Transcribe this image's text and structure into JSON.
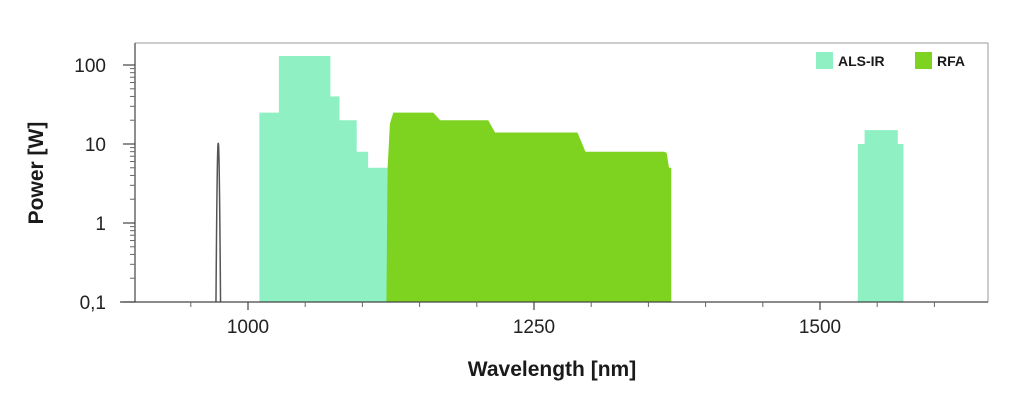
{
  "chart_data": {
    "type": "area",
    "xlabel": "Wavelength [nm]",
    "ylabel": "Power [W]",
    "xlim": [
      880,
      1650
    ],
    "ylim": [
      0.1,
      200
    ],
    "y_scale": "log",
    "x_ticks": [
      {
        "value": 1000,
        "label": "1000"
      },
      {
        "value": 1250,
        "label": "1250"
      },
      {
        "value": 1500,
        "label": "1500"
      }
    ],
    "x_minor_ticks": [
      950,
      1050,
      1100,
      1150,
      1200,
      1300,
      1350,
      1400,
      1450,
      1550,
      1600
    ],
    "y_ticks": [
      {
        "value": 0.1,
        "label": "0,1"
      },
      {
        "value": 1,
        "label": "1"
      },
      {
        "value": 10,
        "label": "10"
      },
      {
        "value": 100,
        "label": "100"
      }
    ],
    "grid": false,
    "legend_position": "top-right",
    "series": [
      {
        "name": "ALS-IR",
        "color": "#8ff0c4",
        "regions": [
          {
            "x": [
              1010,
              1010,
              1027,
              1027,
              1072,
              1072,
              1080,
              1080,
              1095,
              1095,
              1105,
              1105,
              1114,
              1114,
              1122,
              1122
            ],
            "y": [
              0.1,
              25,
              25,
              130,
              130,
              40,
              40,
              20,
              20,
              8,
              8,
              5,
              5,
              5,
              5,
              0.1
            ]
          },
          {
            "x": [
              1533,
              1533,
              1539,
              1539,
              1568,
              1568,
              1573,
              1573
            ],
            "y": [
              0.1,
              10,
              10,
              15,
              15,
              10,
              10,
              0.1
            ]
          }
        ]
      },
      {
        "name": "RFA",
        "color": "#7ed321",
        "regions": [
          {
            "x": [
              1121,
              1122,
              1124,
              1127,
              1162,
              1168,
              1210,
              1216,
              1288,
              1295,
              1364,
              1366,
              1366,
              1368,
              1368,
              1370,
              1370
            ],
            "y": [
              0.1,
              5,
              18,
              25,
              25,
              20,
              20,
              14,
              14,
              8,
              8,
              7.7,
              7.7,
              5,
              5,
              5,
              0.1
            ]
          }
        ]
      }
    ],
    "annotation_peak": {
      "x": [
        972,
        974,
        976
      ],
      "y": [
        0.1,
        10,
        0.1
      ],
      "color": "#555555"
    }
  }
}
